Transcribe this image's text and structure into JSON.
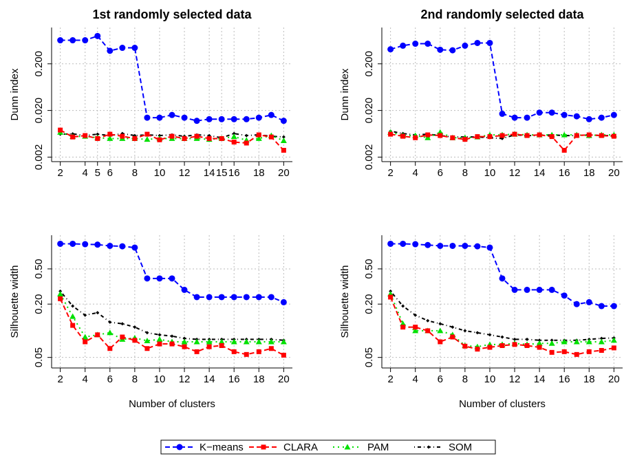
{
  "chart_data": [
    {
      "type": "line",
      "title": "1st randomly selected data",
      "y_label": "Dunn index",
      "log_y": true,
      "grid": true,
      "x": [
        2,
        3,
        4,
        5,
        6,
        7,
        8,
        9,
        10,
        11,
        12,
        13,
        14,
        15,
        16,
        17,
        18,
        19,
        20
      ],
      "xlim": [
        1.3,
        20.7
      ],
      "xticks": [
        2,
        4,
        5,
        6,
        8,
        10,
        12,
        14,
        15,
        16,
        18,
        20
      ],
      "ylim": [
        0.0016,
        1.2
      ],
      "yticks": [
        {
          "value": 0.002,
          "label": "0.002"
        },
        {
          "value": 0.02,
          "label": "0.020"
        },
        {
          "value": 0.2,
          "label": "0.200"
        }
      ],
      "series": [
        {
          "name": "K−means",
          "color": "#0000ff",
          "values": [
            0.64,
            0.64,
            0.64,
            0.79,
            0.38,
            0.44,
            0.44,
            0.014,
            0.014,
            0.016,
            0.014,
            0.012,
            0.013,
            0.013,
            0.013,
            0.013,
            0.014,
            0.016,
            0.012
          ]
        },
        {
          "name": "CLARA",
          "color": "#ff0000",
          "values": [
            0.0076,
            0.0054,
            0.0058,
            0.005,
            0.0062,
            0.0056,
            0.005,
            0.0062,
            0.0047,
            0.0056,
            0.005,
            0.0056,
            0.005,
            0.005,
            0.0042,
            0.004,
            0.006,
            0.0054,
            0.0028
          ]
        },
        {
          "name": "PAM",
          "color": "#00e000",
          "values": [
            0.0068,
            0.0055,
            0.0056,
            0.0052,
            0.005,
            0.005,
            0.005,
            0.0048,
            0.005,
            0.005,
            0.005,
            0.005,
            0.0048,
            0.005,
            0.0055,
            0.0046,
            0.005,
            0.0058,
            0.0045
          ]
        },
        {
          "name": "SOM",
          "color": "#000000",
          "values": [
            0.0062,
            0.0063,
            0.0058,
            0.0062,
            0.0058,
            0.0064,
            0.0058,
            0.006,
            0.0058,
            0.006,
            0.0056,
            0.006,
            0.0058,
            0.0052,
            0.0064,
            0.0058,
            0.006,
            0.0056,
            0.0054
          ]
        }
      ]
    },
    {
      "type": "line",
      "title": "2nd randomly selected data",
      "y_label": "Dunn index",
      "log_y": true,
      "grid": true,
      "x": [
        2,
        3,
        4,
        5,
        6,
        7,
        8,
        9,
        10,
        11,
        12,
        13,
        14,
        15,
        16,
        17,
        18,
        19,
        20
      ],
      "xlim": [
        1.3,
        20.7
      ],
      "xticks": [
        2,
        4,
        6,
        8,
        10,
        12,
        14,
        16,
        18,
        20
      ],
      "ylim": [
        0.0016,
        1.2
      ],
      "yticks": [
        {
          "value": 0.002,
          "label": "0.002"
        },
        {
          "value": 0.02,
          "label": "0.020"
        },
        {
          "value": 0.2,
          "label": "0.200"
        }
      ],
      "series": [
        {
          "values": [
            0.41,
            0.49,
            0.54,
            0.54,
            0.4,
            0.39,
            0.49,
            0.56,
            0.56,
            0.017,
            0.014,
            0.014,
            0.018,
            0.018,
            0.016,
            0.015,
            0.013,
            0.014,
            0.016
          ]
        },
        {
          "values": [
            0.0062,
            0.0056,
            0.0052,
            0.006,
            0.0058,
            0.0052,
            0.0048,
            0.0055,
            0.0055,
            0.0058,
            0.0062,
            0.0058,
            0.006,
            0.0055,
            0.0028,
            0.0058,
            0.006,
            0.0058,
            0.0056
          ]
        },
        {
          "values": [
            0.0068,
            0.0058,
            0.0058,
            0.0052,
            0.0068,
            0.0052,
            0.0052,
            0.0054,
            0.006,
            0.006,
            0.0062,
            0.006,
            0.006,
            0.006,
            0.006,
            0.006,
            0.0058,
            0.006,
            0.006
          ]
        },
        {
          "values": [
            0.0072,
            0.0064,
            0.006,
            0.0062,
            0.0058,
            0.0054,
            0.0054,
            0.0054,
            0.0052,
            0.005,
            0.006,
            0.0058,
            0.0058,
            0.006,
            0.0058,
            0.0058,
            0.006,
            0.0058,
            0.0058
          ]
        }
      ]
    },
    {
      "type": "line",
      "y_label": "Silhouette width",
      "x_label": "Number of clusters",
      "log_y": true,
      "grid": true,
      "x": [
        2,
        3,
        4,
        5,
        6,
        7,
        8,
        9,
        10,
        11,
        12,
        13,
        14,
        15,
        16,
        17,
        18,
        19,
        20
      ],
      "xlim": [
        1.3,
        20.7
      ],
      "xticks": [
        2,
        4,
        6,
        8,
        10,
        12,
        14,
        16,
        18,
        20
      ],
      "ylim": [
        0.038,
        1.2
      ],
      "yticks": [
        {
          "value": 0.05,
          "label": "0.05"
        },
        {
          "value": 0.2,
          "label": "0.20"
        },
        {
          "value": 0.5,
          "label": "0.50"
        }
      ],
      "series": [
        {
          "values": [
            0.96,
            0.96,
            0.95,
            0.94,
            0.91,
            0.9,
            0.87,
            0.39,
            0.39,
            0.39,
            0.29,
            0.24,
            0.24,
            0.24,
            0.24,
            0.24,
            0.24,
            0.24,
            0.21
          ]
        },
        {
          "values": [
            0.23,
            0.115,
            0.075,
            0.09,
            0.063,
            0.085,
            0.078,
            0.063,
            0.071,
            0.071,
            0.066,
            0.058,
            0.066,
            0.068,
            0.058,
            0.054,
            0.058,
            0.063,
            0.053
          ]
        },
        {
          "values": [
            0.26,
            0.145,
            0.085,
            0.09,
            0.095,
            0.08,
            0.083,
            0.077,
            0.08,
            0.075,
            0.075,
            0.075,
            0.075,
            0.075,
            0.075,
            0.075,
            0.075,
            0.075,
            0.075
          ]
        },
        {
          "values": [
            0.28,
            0.19,
            0.15,
            0.16,
            0.125,
            0.12,
            0.11,
            0.095,
            0.09,
            0.087,
            0.082,
            0.08,
            0.08,
            0.08,
            0.08,
            0.08,
            0.08,
            0.08,
            0.078
          ]
        }
      ]
    },
    {
      "type": "line",
      "y_label": "Silhouette width",
      "x_label": "Number of clusters",
      "log_y": true,
      "grid": true,
      "x": [
        2,
        3,
        4,
        5,
        6,
        7,
        8,
        9,
        10,
        11,
        12,
        13,
        14,
        15,
        16,
        17,
        18,
        19,
        20
      ],
      "xlim": [
        1.3,
        20.7
      ],
      "xticks": [
        2,
        4,
        6,
        8,
        10,
        12,
        14,
        16,
        18,
        20
      ],
      "ylim": [
        0.038,
        1.2
      ],
      "yticks": [
        {
          "value": 0.05,
          "label": "0.05"
        },
        {
          "value": 0.2,
          "label": "0.20"
        },
        {
          "value": 0.5,
          "label": "0.50"
        }
      ],
      "series": [
        {
          "values": [
            0.96,
            0.96,
            0.95,
            0.93,
            0.91,
            0.91,
            0.91,
            0.9,
            0.87,
            0.39,
            0.29,
            0.29,
            0.29,
            0.29,
            0.25,
            0.2,
            0.21,
            0.19,
            0.19
          ]
        },
        {
          "values": [
            0.24,
            0.11,
            0.11,
            0.1,
            0.075,
            0.085,
            0.067,
            0.062,
            0.065,
            0.068,
            0.07,
            0.068,
            0.065,
            0.057,
            0.058,
            0.054,
            0.058,
            0.06,
            0.064
          ]
        },
        {
          "values": [
            0.26,
            0.12,
            0.1,
            0.1,
            0.1,
            0.09,
            0.068,
            0.066,
            0.07,
            0.07,
            0.072,
            0.07,
            0.072,
            0.072,
            0.075,
            0.075,
            0.075,
            0.075,
            0.078
          ]
        },
        {
          "values": [
            0.28,
            0.19,
            0.15,
            0.13,
            0.12,
            0.11,
            0.1,
            0.095,
            0.09,
            0.085,
            0.08,
            0.08,
            0.078,
            0.078,
            0.078,
            0.078,
            0.08,
            0.082,
            0.083
          ]
        }
      ]
    }
  ]
}
